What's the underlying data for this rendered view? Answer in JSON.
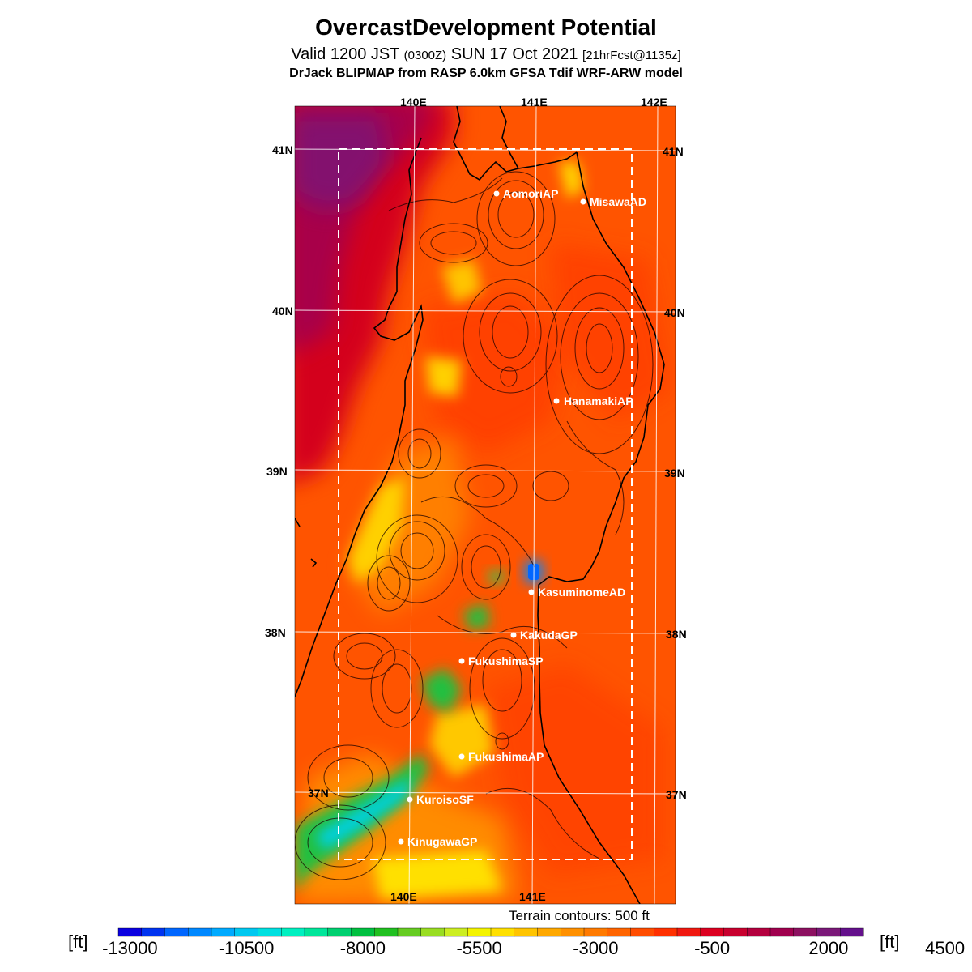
{
  "header": {
    "title": "OvercastDevelopment Potential",
    "valid_prefix": "Valid 1200 JST",
    "valid_zulu": "(0300Z)",
    "valid_date": "SUN 17 Oct 2021",
    "forecast": "[21hrFcst@1135z]",
    "model": "DrJack BLIPMAP from RASP 6.0km GFSA Tdif WRF-ARW model"
  },
  "map": {
    "lon_labels_top": [
      "140E",
      "141E",
      "142E"
    ],
    "lon_labels_bottom": [
      "140E",
      "141E"
    ],
    "lat_labels_left": [
      "41N",
      "40N",
      "39N",
      "38N",
      "37N"
    ],
    "lat_labels_right": [
      "41N",
      "40N",
      "39N",
      "38N",
      "37N"
    ],
    "places": [
      {
        "name": "AomoriAP"
      },
      {
        "name": "MisawaAD"
      },
      {
        "name": "HanamakiAP"
      },
      {
        "name": "KasuminomeAD"
      },
      {
        "name": "KakudaGP"
      },
      {
        "name": "FukushimaSP"
      },
      {
        "name": "FukushimaAP"
      },
      {
        "name": "KuroisoSF"
      },
      {
        "name": "KinugawaGP"
      }
    ],
    "terrain_note": "Terrain contours: 500 ft"
  },
  "colorbar": {
    "unit_left": "[ft]",
    "unit_right": "[ft]",
    "labels": [
      "-13000",
      "-10500",
      "-8000",
      "-5500",
      "-3000",
      "-500",
      "2000",
      "4500"
    ],
    "colors": [
      "#0a00e0",
      "#0033f0",
      "#0066ff",
      "#0088ff",
      "#00aaff",
      "#00c8f0",
      "#00e0e0",
      "#00f0c0",
      "#00e69a",
      "#00d070",
      "#00c040",
      "#20c020",
      "#66cc22",
      "#99dd22",
      "#ccee22",
      "#f4f400",
      "#ffe000",
      "#ffc400",
      "#ffa800",
      "#ff9000",
      "#ff7a00",
      "#ff6400",
      "#ff4c00",
      "#ff3000",
      "#f01810",
      "#dc0020",
      "#c8002e",
      "#b4003e",
      "#a0004e",
      "#8c1060",
      "#7a1878",
      "#64108c"
    ]
  }
}
